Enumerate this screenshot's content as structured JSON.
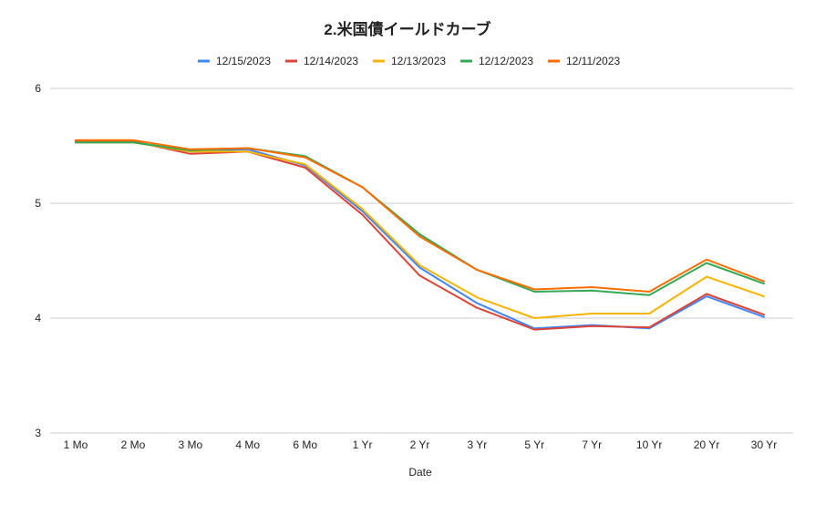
{
  "chart_data": {
    "type": "line",
    "title": "2.米国債イールドカーブ",
    "xlabel": "Date",
    "ylabel": "",
    "ylim": [
      3,
      6
    ],
    "yticks": [
      "3",
      "4",
      "5",
      "6"
    ],
    "ytick_values": [
      3,
      4,
      5,
      6
    ],
    "grid": true,
    "legend_position": "top",
    "categories": [
      "1 Mo",
      "2 Mo",
      "3 Mo",
      "4 Mo",
      "6 Mo",
      "1 Yr",
      "2 Yr",
      "3 Yr",
      "5 Yr",
      "7 Yr",
      "10 Yr",
      "20 Yr",
      "30 Yr"
    ],
    "series": [
      {
        "name": "12/15/2023",
        "color": "#4285f4",
        "values": [
          5.53,
          5.53,
          5.45,
          5.47,
          5.33,
          4.93,
          4.44,
          4.13,
          3.91,
          3.94,
          3.91,
          4.19,
          4.01
        ]
      },
      {
        "name": "12/14/2023",
        "color": "#db4437",
        "values": [
          5.54,
          5.54,
          5.43,
          5.45,
          5.31,
          4.9,
          4.37,
          4.09,
          3.9,
          3.93,
          3.92,
          4.21,
          4.03
        ]
      },
      {
        "name": "12/13/2023",
        "color": "#f4b400",
        "values": [
          5.53,
          5.53,
          5.45,
          5.45,
          5.34,
          4.95,
          4.46,
          4.18,
          4.0,
          4.04,
          4.04,
          4.36,
          4.19
        ]
      },
      {
        "name": "12/12/2023",
        "color": "#34a853",
        "values": [
          5.53,
          5.53,
          5.46,
          5.48,
          5.41,
          5.14,
          4.73,
          4.42,
          4.23,
          4.24,
          4.2,
          4.48,
          4.3
        ]
      },
      {
        "name": "12/11/2023",
        "color": "#ff6d01",
        "values": [
          5.55,
          5.55,
          5.47,
          5.48,
          5.4,
          5.14,
          4.71,
          4.42,
          4.25,
          4.27,
          4.23,
          4.51,
          4.32
        ]
      }
    ]
  }
}
